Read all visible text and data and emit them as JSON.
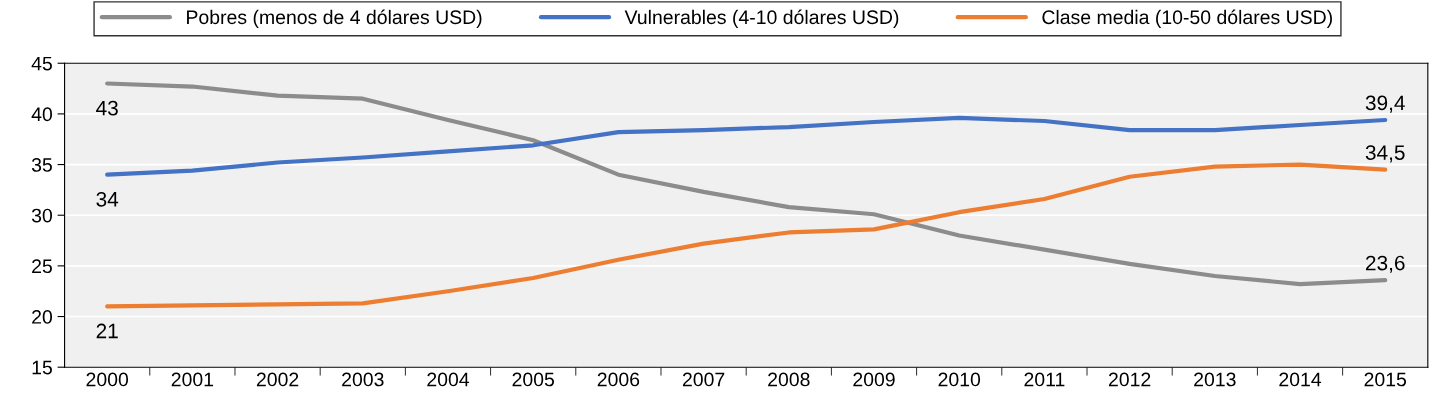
{
  "chart_data": {
    "type": "line",
    "categories": [
      "2000",
      "2001",
      "2002",
      "2003",
      "2004",
      "2005",
      "2006",
      "2007",
      "2008",
      "2009",
      "2010",
      "2011",
      "2012",
      "2013",
      "2014",
      "2015"
    ],
    "series": [
      {
        "name": "Pobres (menos de 4 dólares USD)",
        "color": "#8c8c8c",
        "values": [
          43,
          42.7,
          41.8,
          41.5,
          39.4,
          37.4,
          34.0,
          32.3,
          30.8,
          30.1,
          28.0,
          26.6,
          25.2,
          24.0,
          23.2,
          23.6
        ],
        "value_labels": [
          "43",
          null,
          null,
          null,
          null,
          null,
          null,
          null,
          null,
          null,
          null,
          null,
          null,
          null,
          null,
          "23,6"
        ]
      },
      {
        "name": "Vulnerables (4-10 dólares USD)",
        "color": "#4472c4",
        "values": [
          34,
          34.4,
          35.2,
          35.7,
          36.3,
          36.9,
          38.2,
          38.4,
          38.7,
          39.2,
          39.6,
          39.3,
          38.4,
          38.4,
          38.9,
          39.4
        ],
        "value_labels": [
          "34",
          null,
          null,
          null,
          null,
          null,
          null,
          null,
          null,
          null,
          null,
          null,
          null,
          null,
          null,
          "39,4"
        ]
      },
      {
        "name": "Clase media (10-50 dólares USD)",
        "color": "#ed7d31",
        "values": [
          21,
          21.1,
          21.2,
          21.3,
          22.5,
          23.8,
          25.6,
          27.2,
          28.3,
          28.6,
          30.3,
          31.6,
          33.8,
          34.8,
          35.0,
          34.5
        ],
        "value_labels": [
          "21",
          null,
          null,
          null,
          null,
          null,
          null,
          null,
          null,
          null,
          null,
          null,
          null,
          null,
          null,
          "34,5"
        ]
      }
    ],
    "ylim": [
      15,
      45
    ],
    "yticks": [
      15,
      20,
      25,
      30,
      35,
      40,
      45
    ],
    "grid": "y",
    "legend": "top",
    "marker": "none",
    "line_style": "solid"
  }
}
